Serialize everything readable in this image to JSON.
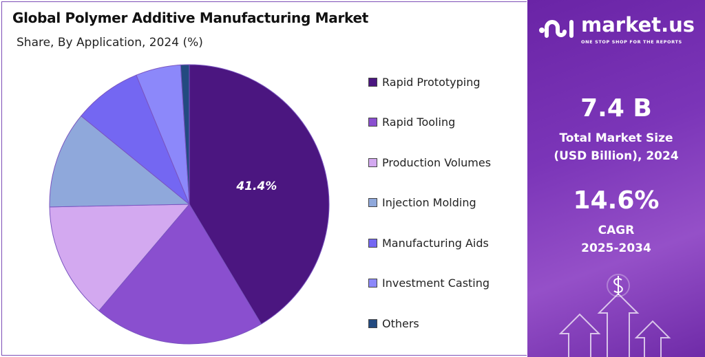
{
  "chart_data": {
    "type": "pie",
    "title": "Global Polymer Additive Manufacturing Market",
    "subtitle": "Share, By Application, 2024 (%)",
    "categories": [
      "Rapid Prototyping",
      "Rapid Tooling",
      "Production Volumes",
      "Injection Molding",
      "Manufacturing Aids",
      "Investment Casting",
      "Others"
    ],
    "values": [
      41.4,
      19.8,
      13.5,
      11.2,
      7.9,
      5.2,
      1.0
    ],
    "colors": [
      "#4b1680",
      "#8a4fcf",
      "#d3a9f0",
      "#8fa8db",
      "#7467f2",
      "#8c88fa",
      "#234a80"
    ],
    "data_labels": [
      "41.4%",
      "",
      "",
      "",
      "",
      "",
      ""
    ],
    "start": "12 o'clock, clockwise",
    "legend_position": "right"
  },
  "brand": {
    "name": "market.us",
    "tagline": "ONE STOP SHOP FOR THE REPORTS"
  },
  "stats": {
    "market_size": "7.4 B",
    "market_size_label_1": "Total Market Size",
    "market_size_label_2": "(USD Billion), 2024",
    "cagr": "14.6%",
    "cagr_label_1": "CAGR",
    "cagr_label_2": "2025-2034"
  }
}
